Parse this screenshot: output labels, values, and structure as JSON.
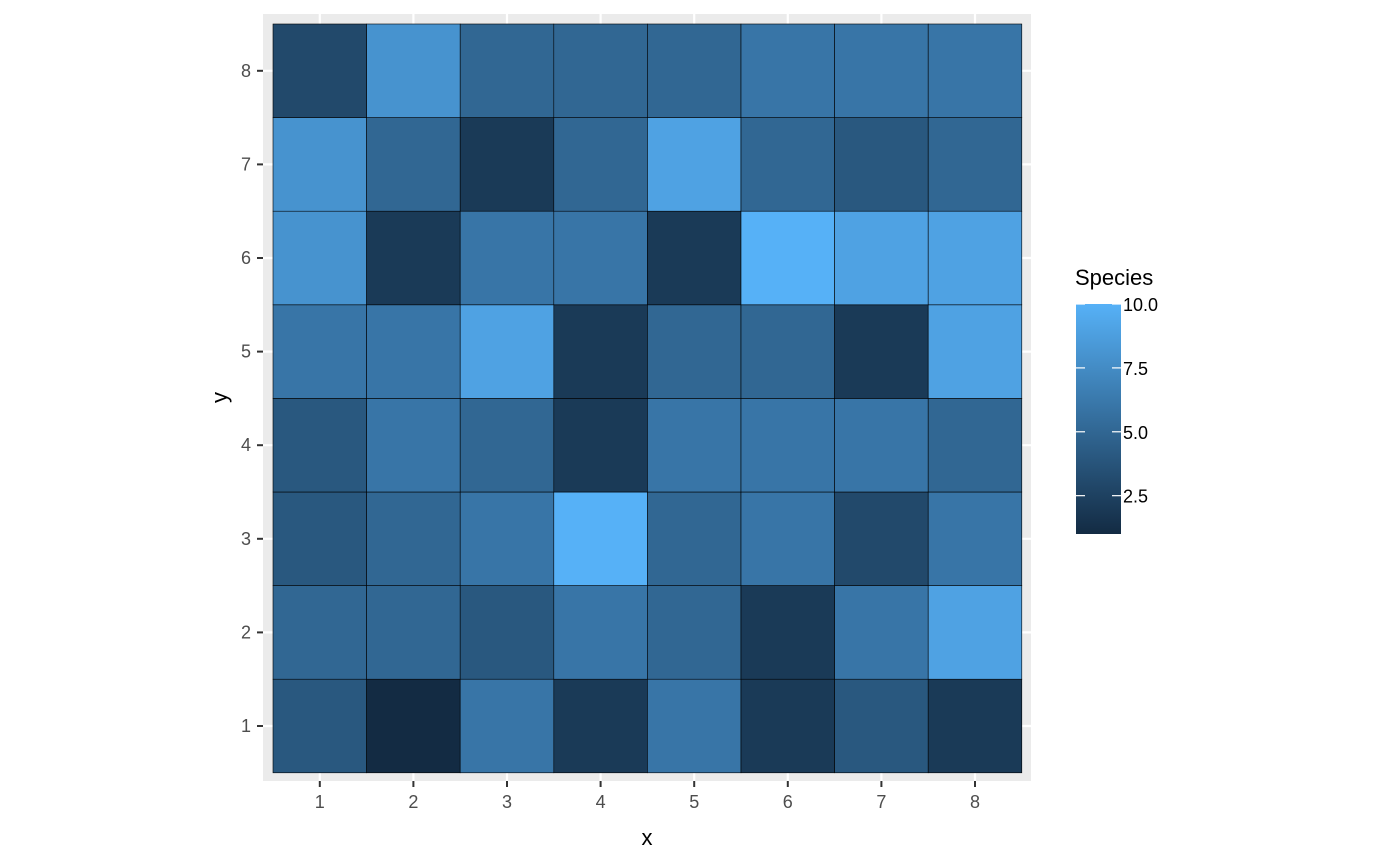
{
  "chart_data": {
    "type": "heatmap",
    "title": "",
    "xlabel": "x",
    "ylabel": "y",
    "x": [
      1,
      2,
      3,
      4,
      5,
      6,
      7,
      8
    ],
    "y": [
      1,
      2,
      3,
      4,
      5,
      6,
      7,
      8
    ],
    "x_tick_labels": [
      "1",
      "2",
      "3",
      "4",
      "5",
      "6",
      "7",
      "8"
    ],
    "y_tick_labels": [
      "1",
      "2",
      "3",
      "4",
      "5",
      "6",
      "7",
      "8"
    ],
    "xlim": [
      0.5,
      8.5
    ],
    "ylim": [
      0.5,
      8.5
    ],
    "grid": true,
    "legend": {
      "title": "Species",
      "position": "right",
      "breaks": [
        2.5,
        5.0,
        7.5,
        10.0
      ],
      "break_labels": [
        "2.5",
        "5.0",
        "7.5",
        "10.0"
      ],
      "range": [
        1,
        10
      ],
      "low_color": "#132B43",
      "high_color": "#56B1F7"
    },
    "values_by_row_from_y1": [
      [
        4,
        1,
        6,
        2,
        6,
        2,
        4,
        2
      ],
      [
        5,
        5,
        4,
        6,
        5,
        2,
        6,
        9
      ],
      [
        4,
        5,
        6,
        10,
        5,
        6,
        3,
        6
      ],
      [
        4,
        6,
        5,
        2,
        6,
        6,
        6,
        5
      ],
      [
        6,
        6,
        9,
        2,
        5,
        5,
        2,
        9
      ],
      [
        8,
        2,
        6,
        6,
        2,
        10,
        9,
        9
      ],
      [
        8,
        5,
        2,
        5,
        9,
        5,
        4,
        5
      ],
      [
        3,
        8,
        5,
        5,
        5,
        6,
        6,
        6
      ]
    ]
  },
  "colors": {
    "panel_background": "#EBEBEB",
    "grid_line": "#FFFFFF",
    "tile_border": "#000000"
  }
}
